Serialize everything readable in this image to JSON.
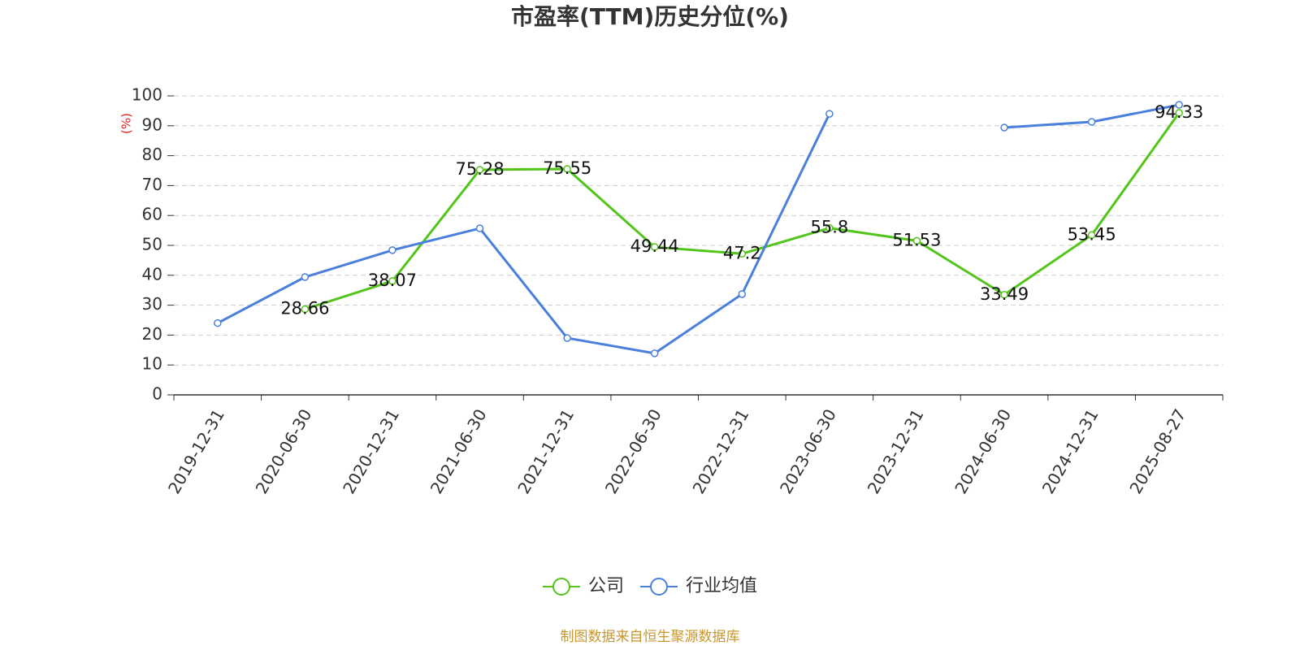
{
  "chart_data": {
    "type": "line",
    "title": "市盈率(TTM)历史分位(%)",
    "y_label": "(%)",
    "source": "制图数据来自恒生聚源数据库",
    "categories": [
      "2019-12-31",
      "2020-06-30",
      "2020-12-31",
      "2021-06-30",
      "2021-12-31",
      "2022-06-30",
      "2022-12-31",
      "2023-06-30",
      "2023-12-31",
      "2024-06-30",
      "2024-12-31",
      "2025-08-27"
    ],
    "series": [
      {
        "name": "公司",
        "color": "#52c41a",
        "data_labels": true,
        "values": [
          null,
          28.66,
          38.07,
          75.28,
          75.55,
          49.44,
          47.2,
          55.8,
          51.53,
          33.49,
          53.45,
          94.33
        ]
      },
      {
        "name": "行业均值",
        "color": "#4a7fdb",
        "values": [
          24,
          39.4,
          48.4,
          55.7,
          19,
          13.9,
          33.7,
          94,
          null,
          89.4,
          91.3,
          97
        ]
      }
    ],
    "ylim": [
      0,
      100
    ],
    "yticks": [
      0,
      10,
      20,
      30,
      40,
      50,
      60,
      70,
      80,
      90,
      100
    ],
    "grid": true,
    "legend": "bottom"
  }
}
